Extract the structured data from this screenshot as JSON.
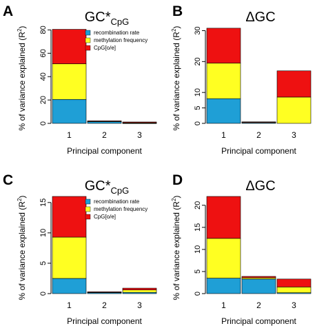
{
  "colors": {
    "recombination rate": "#1f9fd6",
    "methylation frequency": "#ffff22",
    "CpG[o/e]": "#ee1111"
  },
  "chart_data": [
    {
      "type": "bar",
      "stacked": true,
      "panel": "A",
      "title": "GC*",
      "title_sub": "CpG",
      "xlabel": "Principal component",
      "ylabel": "% of variance explained (R²)",
      "categories": [
        "1",
        "2",
        "3"
      ],
      "ylim": [
        0,
        82
      ],
      "yticks": [
        0,
        20,
        40,
        60,
        80
      ],
      "legend": {
        "position": "top-right",
        "entries": [
          "recombination rate",
          "methylation frequency",
          "CpG[o/e]"
        ]
      },
      "series": [
        {
          "name": "recombination rate",
          "values": [
            20.5,
            1.7,
            0.3
          ]
        },
        {
          "name": "methylation frequency",
          "values": [
            30.5,
            0.2,
            0.3
          ]
        },
        {
          "name": "CpG[o/e]",
          "values": [
            29.5,
            0.3,
            0.6
          ]
        }
      ]
    },
    {
      "type": "bar",
      "stacked": true,
      "panel": "B",
      "title": "ΔGC",
      "title_sub": "",
      "xlabel": "Principal component",
      "ylabel": "% of variance explained (R²)",
      "categories": [
        "1",
        "2",
        "3"
      ],
      "ylim": [
        0,
        31
      ],
      "yticks": [
        0,
        5,
        10,
        20,
        30
      ],
      "series": [
        {
          "name": "recombination rate",
          "values": [
            8.0,
            0.3,
            0.0
          ]
        },
        {
          "name": "methylation frequency",
          "values": [
            11.5,
            0.1,
            8.5
          ]
        },
        {
          "name": "CpG[o/e]",
          "values": [
            11.3,
            0.1,
            8.5
          ]
        }
      ]
    },
    {
      "type": "bar",
      "stacked": true,
      "panel": "C",
      "title": "GC*",
      "title_sub": "CpG",
      "xlabel": "Principal component",
      "ylabel": "% of variance explained (R²)",
      "categories": [
        "1",
        "2",
        "3"
      ],
      "ylim": [
        0,
        16
      ],
      "yticks": [
        0,
        5,
        10,
        15
      ],
      "legend": {
        "position": "top-right",
        "entries": [
          "recombination rate",
          "methylation frequency",
          "CpG[o/e]"
        ]
      },
      "series": [
        {
          "name": "recombination rate",
          "values": [
            2.5,
            0.2,
            0.2
          ]
        },
        {
          "name": "methylation frequency",
          "values": [
            6.8,
            0.05,
            0.4
          ]
        },
        {
          "name": "CpG[o/e]",
          "values": [
            6.7,
            0.05,
            0.3
          ]
        }
      ]
    },
    {
      "type": "bar",
      "stacked": true,
      "panel": "D",
      "title": "ΔGC",
      "title_sub": "",
      "xlabel": "Principal component",
      "ylabel": "% of variance explained (R²)",
      "categories": [
        "1",
        "2",
        "3"
      ],
      "ylim": [
        0,
        22
      ],
      "yticks": [
        0,
        5,
        10,
        15,
        20
      ],
      "series": [
        {
          "name": "recombination rate",
          "values": [
            3.5,
            3.3,
            0.2
          ]
        },
        {
          "name": "methylation frequency",
          "values": [
            9.0,
            0.3,
            1.3
          ]
        },
        {
          "name": "CpG[o/e]",
          "values": [
            9.5,
            0.3,
            1.8
          ]
        }
      ]
    }
  ]
}
